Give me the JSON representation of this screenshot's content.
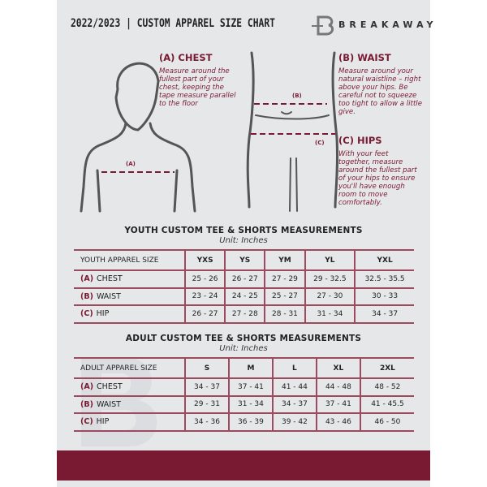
{
  "header": {
    "title": "2022/2023  |  CUSTOM APPAREL SIZE CHART",
    "brand": "BREAKAWAY",
    "logo_letter": "B"
  },
  "guide": {
    "chest": {
      "title": "(A) CHEST",
      "text": "Measure around the fullest part of your chest, keeping the tape measure parallel to the floor",
      "marker": "(A)"
    },
    "waist": {
      "title": "(B) WAIST",
      "text": "Measure around your natural waistline – right above your hips. Be careful not to squeeze too tight to allow a little give.",
      "marker": "(B)"
    },
    "hips": {
      "title": "(C) HIPS",
      "text": "With your feet together, measure around the fullest part of your hips to ensure you'll have enough room to move comfortably.",
      "marker": "(C)"
    }
  },
  "youth": {
    "title": "YOUTH CUSTOM TEE & SHORTS MEASUREMENTS",
    "unit": "Unit: Inches",
    "header": "YOUTH APPAREL SIZE",
    "sizes": [
      "YXS",
      "YS",
      "YM",
      "YL",
      "YXL"
    ],
    "rows": [
      {
        "letter": "(A)",
        "label": "CHEST",
        "values": [
          "25 - 26",
          "26 - 27",
          "27 - 29",
          "29 - 32.5",
          "32.5 - 35.5"
        ]
      },
      {
        "letter": "(B)",
        "label": "WAIST",
        "values": [
          "23 - 24",
          "24 - 25",
          "25 - 27",
          "27 - 30",
          "30 - 33"
        ]
      },
      {
        "letter": "(C)",
        "label": "HIP",
        "values": [
          "26 - 27",
          "27 - 28",
          "28 - 31",
          "31 - 34",
          "34 - 37"
        ]
      }
    ]
  },
  "adult": {
    "title": "ADULT CUSTOM TEE & SHORTS MEASUREMENTS",
    "unit": "Unit: Inches",
    "header": "ADULT APPAREL SIZE",
    "sizes": [
      "S",
      "M",
      "L",
      "XL",
      "2XL"
    ],
    "rows": [
      {
        "letter": "(A)",
        "label": "CHEST",
        "values": [
          "34 - 37",
          "37 - 41",
          "41 - 44",
          "44 - 48",
          "48 - 52"
        ]
      },
      {
        "letter": "(B)",
        "label": "WAIST",
        "values": [
          "29 - 31",
          "31 - 34",
          "34 - 37",
          "37 - 41",
          "41 - 45.5"
        ]
      },
      {
        "letter": "(C)",
        "label": "HIP",
        "values": [
          "34 - 36",
          "36 - 39",
          "39 - 42",
          "43 - 46",
          "46 - 50"
        ]
      }
    ]
  },
  "colors": {
    "accent": "#7a1a32",
    "background": "#e6e7e9"
  }
}
